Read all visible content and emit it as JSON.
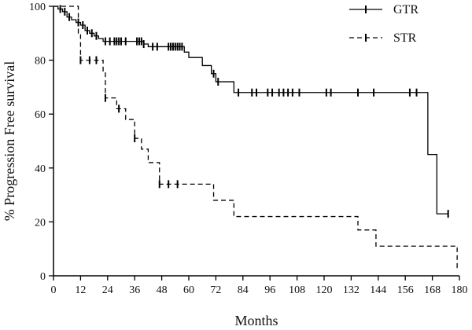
{
  "chart_data": {
    "type": "line",
    "subtype": "kaplan-meier step curve with censor marks",
    "title": "",
    "xlabel": "Months",
    "ylabel": "% Progression Free survival",
    "xlim": [
      0,
      180
    ],
    "ylim": [
      0,
      100
    ],
    "xticks": [
      0,
      12,
      24,
      36,
      48,
      60,
      72,
      84,
      96,
      108,
      120,
      132,
      144,
      156,
      168,
      180
    ],
    "yticks": [
      0,
      20,
      40,
      60,
      80,
      100
    ],
    "grid": false,
    "legend_position": "top-right",
    "series": [
      {
        "name": "GTR",
        "line_style": "solid",
        "color": "#000000",
        "steps": [
          [
            0,
            100
          ],
          [
            2,
            99
          ],
          [
            4,
            98
          ],
          [
            6,
            96
          ],
          [
            8,
            95
          ],
          [
            10,
            94
          ],
          [
            12,
            93
          ],
          [
            14,
            91
          ],
          [
            16,
            90
          ],
          [
            18,
            89
          ],
          [
            20,
            88
          ],
          [
            22,
            87
          ],
          [
            40,
            86
          ],
          [
            42,
            85
          ],
          [
            58,
            83
          ],
          [
            60,
            81
          ],
          [
            66,
            78
          ],
          [
            70,
            75
          ],
          [
            72,
            72
          ],
          [
            80,
            68
          ],
          [
            166,
            45
          ],
          [
            170,
            23
          ],
          [
            175,
            23
          ]
        ],
        "censor_times": [
          3,
          5,
          7,
          11,
          13,
          15,
          17,
          19,
          23,
          25,
          27,
          28,
          29,
          30,
          32,
          37,
          38,
          39,
          40,
          44,
          46,
          51,
          52,
          53,
          54,
          55,
          56,
          57,
          71,
          73,
          82,
          88,
          90,
          95,
          97,
          100,
          102,
          104,
          106,
          109,
          121,
          123,
          135,
          142,
          158,
          161,
          175
        ]
      },
      {
        "name": "STR",
        "line_style": "dashed",
        "color": "#000000",
        "steps": [
          [
            0,
            100
          ],
          [
            11,
            90
          ],
          [
            12,
            80
          ],
          [
            22,
            76
          ],
          [
            23,
            66
          ],
          [
            28,
            62
          ],
          [
            32,
            58
          ],
          [
            36,
            51
          ],
          [
            39,
            47
          ],
          [
            42,
            42
          ],
          [
            47,
            34
          ],
          [
            71,
            28
          ],
          [
            80,
            22
          ],
          [
            135,
            17
          ],
          [
            143,
            11
          ],
          [
            179,
            3
          ],
          [
            180,
            3
          ]
        ],
        "censor_times": [
          12,
          16,
          19,
          23,
          29,
          36,
          47,
          51,
          55
        ]
      }
    ]
  }
}
